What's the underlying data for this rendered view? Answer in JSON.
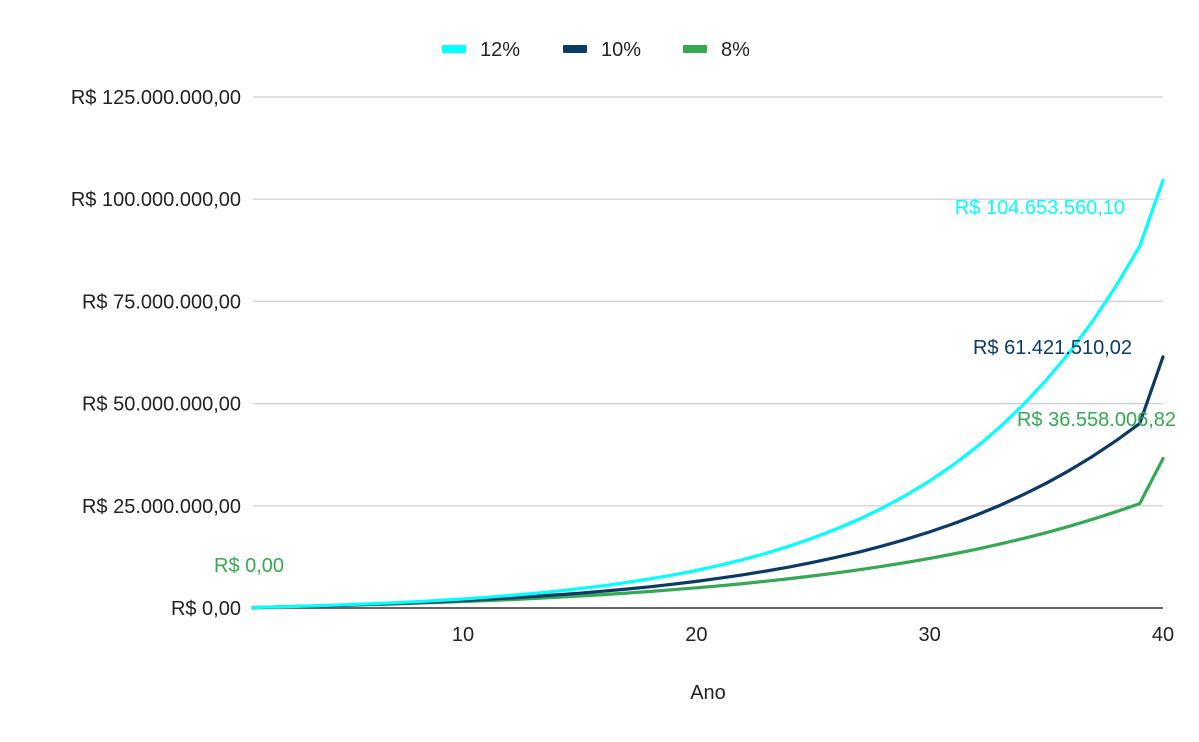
{
  "chart_data": {
    "type": "line",
    "title": "",
    "xlabel": "Ano",
    "ylabel": "",
    "xlim": [
      1,
      40
    ],
    "ylim": [
      0,
      125000000
    ],
    "x_ticks": [
      10,
      20,
      30,
      40
    ],
    "y_ticks": [
      0,
      25000000,
      50000000,
      75000000,
      100000000,
      125000000
    ],
    "y_tick_labels": [
      "R$ 0,00",
      "R$ 25.000.000,00",
      "R$ 50.000.000,00",
      "R$ 75.000.000,00",
      "R$ 100.000.000,00",
      "R$ 125.000.000,00"
    ],
    "grid": "horizontal",
    "legend_position": "top",
    "x": [
      1,
      2,
      3,
      4,
      5,
      6,
      7,
      8,
      9,
      10,
      11,
      12,
      13,
      14,
      15,
      16,
      17,
      18,
      19,
      20,
      21,
      22,
      23,
      24,
      25,
      26,
      27,
      28,
      29,
      30,
      31,
      32,
      33,
      34,
      35,
      36,
      37,
      38,
      39,
      40
    ],
    "series": [
      {
        "name": "12%",
        "color": "#00ffff",
        "values": [
          116000,
          260000,
          420000,
          600000,
          800000,
          1020000,
          1270000,
          1550000,
          1860000,
          2210000,
          2610000,
          3050000,
          3550000,
          4110000,
          4740000,
          5440000,
          6230000,
          7110000,
          8100000,
          9200000,
          10450000,
          11840000,
          13410000,
          15160000,
          17120000,
          19320000,
          21780000,
          24540000,
          27630000,
          31100000,
          34980000,
          39330000,
          44200000,
          49650000,
          55760000,
          62610000,
          70280000,
          78870000,
          88490000,
          104653560.1
        ],
        "end_label": "R$ 104.653.560,10"
      },
      {
        "name": "10%",
        "color": "#0b3a66",
        "values": [
          116000,
          250000,
          390000,
          550000,
          720000,
          900000,
          1100000,
          1320000,
          1570000,
          1840000,
          2130000,
          2450000,
          2810000,
          3200000,
          3630000,
          4100000,
          4620000,
          5190000,
          5820000,
          6510000,
          7280000,
          8120000,
          9040000,
          10060000,
          11170000,
          12390000,
          13730000,
          15210000,
          16830000,
          18610000,
          20570000,
          22720000,
          25080000,
          27680000,
          30540000,
          33690000,
          37150000,
          40950000,
          45140000,
          61421510.02
        ],
        "end_label": "R$ 61.421.510,02"
      },
      {
        "name": "8%",
        "color": "#34a853",
        "values": [
          0,
          240000,
          370000,
          510000,
          660000,
          820000,
          990000,
          1170000,
          1370000,
          1580000,
          1810000,
          2060000,
          2330000,
          2620000,
          2940000,
          3280000,
          3650000,
          4040000,
          4470000,
          4930000,
          5430000,
          5970000,
          6550000,
          7180000,
          7860000,
          8590000,
          9380000,
          10230000,
          11150000,
          12140000,
          13210000,
          14370000,
          15620000,
          16970000,
          18430000,
          20010000,
          21710000,
          23550000,
          25540000,
          36558006.82
        ],
        "start_label": "R$ 0,00",
        "end_label": "R$ 36.558.006,82"
      }
    ]
  }
}
